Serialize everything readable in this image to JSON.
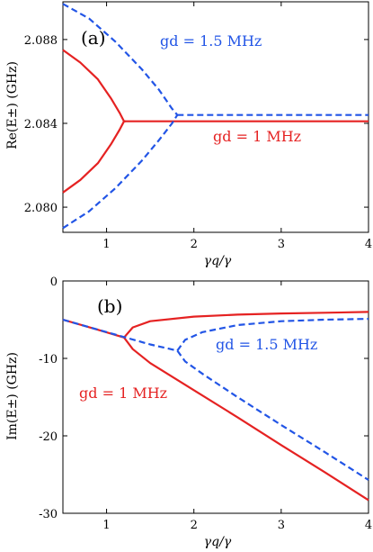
{
  "chart_data": [
    {
      "panel_label": "(a)",
      "type": "line",
      "xlabel": "γq/γ",
      "ylabel": "Re(E±) (GHz)",
      "xlim": [
        0.5,
        4
      ],
      "ylim": [
        2.0788,
        2.0898
      ],
      "x_ticks": [
        1,
        2,
        3,
        4
      ],
      "y_ticks": [
        2.08,
        2.084,
        2.088
      ],
      "y_tick_labels": [
        "2.080",
        "2.084",
        "2.088"
      ],
      "annotations": [
        {
          "text": "gd = 1.5 MHz",
          "color": "#2255e6"
        },
        {
          "text": "gd = 1 MHz",
          "color": "#e52222"
        }
      ],
      "series": [
        {
          "color": "#e52222",
          "style": "solid",
          "branches": [
            {
              "x": [
                0.5,
                0.7,
                0.9,
                1.05,
                1.15,
                1.2,
                1.22
              ],
              "y": [
                2.0875,
                2.0869,
                2.0861,
                2.0852,
                2.0845,
                2.0841,
                2.0841
              ]
            },
            {
              "x": [
                0.5,
                0.7,
                0.9,
                1.05,
                1.15,
                1.2,
                1.22
              ],
              "y": [
                2.0807,
                2.0813,
                2.0821,
                2.083,
                2.0837,
                2.0841,
                2.0841
              ]
            },
            {
              "x": [
                1.22,
                2.0,
                3.0,
                4.0
              ],
              "y": [
                2.0841,
                2.0841,
                2.0841,
                2.0841
              ]
            }
          ]
        },
        {
          "color": "#2255e6",
          "style": "dashed",
          "branches": [
            {
              "x": [
                0.5,
                0.8,
                1.1,
                1.4,
                1.6,
                1.75,
                1.81
              ],
              "y": [
                2.0897,
                2.089,
                2.0879,
                2.0866,
                2.0856,
                2.0847,
                2.0844
              ]
            },
            {
              "x": [
                0.5,
                0.8,
                1.1,
                1.4,
                1.6,
                1.75,
                1.81
              ],
              "y": [
                2.079,
                2.0798,
                2.0809,
                2.0822,
                2.0832,
                2.084,
                2.0844
              ]
            },
            {
              "x": [
                1.81,
                2.5,
                3.0,
                4.0
              ],
              "y": [
                2.0844,
                2.0844,
                2.0844,
                2.0844
              ]
            }
          ]
        }
      ]
    },
    {
      "panel_label": "(b)",
      "type": "line",
      "xlabel": "γq/γ",
      "ylabel": "Im(E±) (GHz)",
      "xlim": [
        0.5,
        4
      ],
      "ylim": [
        -30,
        0
      ],
      "x_ticks": [
        1,
        2,
        3,
        4
      ],
      "y_ticks": [
        0,
        -10,
        -20,
        -30
      ],
      "y_tick_labels": [
        "0",
        "-10",
        "-20",
        "-30"
      ],
      "annotations": [
        {
          "text": "gd = 1.5 MHz",
          "color": "#2255e6"
        },
        {
          "text": "gd = 1 MHz",
          "color": "#e52222"
        }
      ],
      "series": [
        {
          "color": "#e52222",
          "style": "solid",
          "branches": [
            {
              "x": [
                0.5,
                0.9,
                1.2
              ],
              "y": [
                -5.0,
                -6.3,
                -7.3
              ]
            },
            {
              "x": [
                1.2,
                1.3,
                1.5,
                2.0,
                2.5,
                3.0,
                3.5,
                4.0
              ],
              "y": [
                -7.3,
                -6.0,
                -5.2,
                -4.6,
                -4.35,
                -4.2,
                -4.1,
                -4.0
              ]
            },
            {
              "x": [
                1.2,
                1.3,
                1.5,
                2.0,
                2.5,
                3.0,
                3.5,
                4.0
              ],
              "y": [
                -7.3,
                -8.8,
                -10.6,
                -14.1,
                -17.6,
                -21.2,
                -24.7,
                -28.3
              ]
            }
          ]
        },
        {
          "color": "#2255e6",
          "style": "dashed",
          "branches": [
            {
              "x": [
                0.5,
                1.0,
                1.5,
                1.81
              ],
              "y": [
                -5.0,
                -6.6,
                -8.2,
                -9.0
              ]
            },
            {
              "x": [
                1.81,
                1.9,
                2.1,
                2.5,
                3.0,
                3.5,
                4.0
              ],
              "y": [
                -9.0,
                -7.6,
                -6.6,
                -5.7,
                -5.2,
                -5.0,
                -4.9
              ]
            },
            {
              "x": [
                1.81,
                1.9,
                2.1,
                2.5,
                3.0,
                3.5,
                4.0
              ],
              "y": [
                -9.0,
                -10.4,
                -12.0,
                -15.0,
                -18.6,
                -22.1,
                -25.7
              ]
            }
          ]
        }
      ]
    }
  ]
}
